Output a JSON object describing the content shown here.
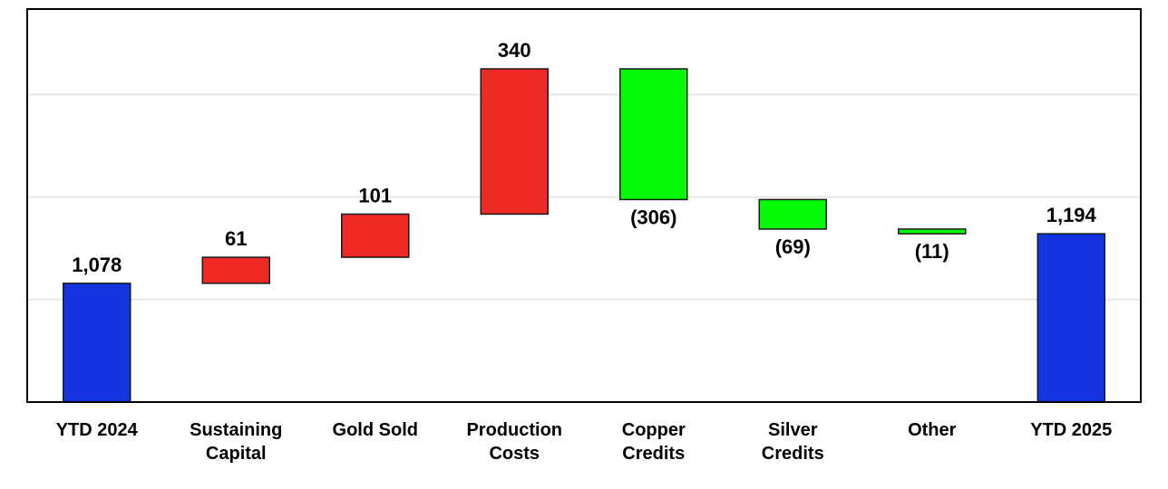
{
  "chart_data": {
    "type": "bar",
    "subtype": "waterfall",
    "categories": [
      [
        "YTD 2024"
      ],
      [
        "Sustaining",
        "Capital"
      ],
      [
        "Gold Sold"
      ],
      [
        "Production",
        "Costs"
      ],
      [
        "Copper",
        "Credits"
      ],
      [
        "Silver",
        "Credits"
      ],
      [
        "Other"
      ],
      [
        "YTD 2025"
      ]
    ],
    "values": [
      1078,
      61,
      101,
      340,
      -306,
      -69,
      -11,
      1194
    ],
    "value_labels": [
      "1,078",
      "61",
      "101",
      "340",
      "(306)",
      "(69)",
      "(11)",
      "1,194"
    ],
    "kinds": [
      "total",
      "delta",
      "delta",
      "delta",
      "delta",
      "delta",
      "delta",
      "total"
    ],
    "ylim": [
      800,
      1720
    ],
    "gridlines": [
      1040,
      1280,
      1520
    ],
    "grid": true,
    "legend": false,
    "title": "",
    "xlabel": "",
    "ylabel": "",
    "colors": {
      "total": "#1434e0",
      "increase": "#ee2a26",
      "decrease": "#05fb05",
      "grid": "#e6e6e6",
      "axis": "#000000",
      "bar_outline": "#1a1a1a"
    }
  }
}
